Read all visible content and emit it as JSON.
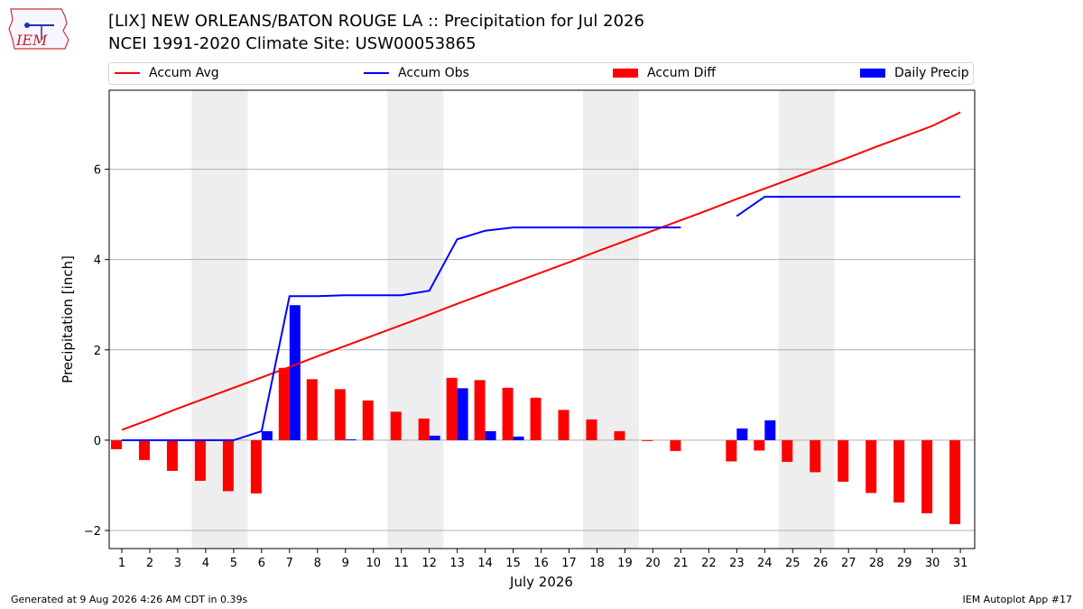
{
  "logo_text": "IEM",
  "title_line1": "[LIX] NEW ORLEANS/BATON ROUGE  LA :: Precipitation for Jul 2026",
  "title_line2": "NCEI 1991-2020 Climate Site: USW00053865",
  "footer_left": "Generated at 9 Aug 2026 4:26 AM CDT in 0.39s",
  "footer_right": "IEM Autoplot App #17",
  "colors": {
    "avg": "#ff0000",
    "obs": "#0000ff",
    "diff": "#ff0000",
    "daily": "#0000ff",
    "weekend": "#eeeeee",
    "grid": "#b0b0b0"
  },
  "chart_data": {
    "type": "bar",
    "xlabel": "July 2026",
    "ylabel": "Precipitation [inch]",
    "ylim": [
      -2.4,
      7.75
    ],
    "yticks": [
      -2,
      0,
      2,
      4,
      6
    ],
    "x": [
      1,
      2,
      3,
      4,
      5,
      6,
      7,
      8,
      9,
      10,
      11,
      12,
      13,
      14,
      15,
      16,
      17,
      18,
      19,
      20,
      21,
      22,
      23,
      24,
      25,
      26,
      27,
      28,
      29,
      30,
      31
    ],
    "shaded_days": [
      4,
      5,
      11,
      12,
      18,
      19,
      25,
      26
    ],
    "grid": true,
    "legend_position": "top",
    "series": [
      {
        "name": "Accum Avg",
        "kind": "line",
        "values": [
          0.23,
          0.46,
          0.7,
          0.93,
          1.16,
          1.39,
          1.62,
          1.86,
          2.09,
          2.32,
          2.55,
          2.78,
          3.02,
          3.25,
          3.48,
          3.71,
          3.94,
          4.18,
          4.41,
          4.64,
          4.87,
          5.1,
          5.34,
          5.57,
          5.8,
          6.03,
          6.26,
          6.5,
          6.73,
          6.96,
          7.26
        ]
      },
      {
        "name": "Accum Obs",
        "kind": "line",
        "values": [
          0,
          0,
          0,
          0,
          0,
          0.2,
          3.19,
          3.19,
          3.21,
          3.21,
          3.21,
          3.31,
          4.45,
          4.64,
          4.71,
          4.71,
          4.71,
          4.71,
          4.71,
          4.71,
          4.71,
          null,
          4.96,
          5.39,
          5.39,
          5.39,
          5.39,
          5.39,
          5.39,
          5.39,
          5.39
        ]
      },
      {
        "name": "Accum Diff",
        "kind": "bar",
        "values": [
          -0.2,
          -0.44,
          -0.68,
          -0.9,
          -1.13,
          -1.18,
          1.6,
          1.35,
          1.13,
          0.88,
          0.63,
          0.48,
          1.38,
          1.33,
          1.16,
          0.94,
          0.67,
          0.46,
          0.2,
          -0.02,
          -0.24,
          null,
          -0.47,
          -0.23,
          -0.48,
          -0.71,
          -0.92,
          -1.17,
          -1.38,
          -1.62,
          -1.86
        ]
      },
      {
        "name": "Daily Precip",
        "kind": "bar",
        "values": [
          0,
          0,
          0,
          0,
          0,
          0.2,
          2.99,
          0,
          0.02,
          0,
          0,
          0.1,
          1.15,
          0.2,
          0.08,
          0,
          0,
          0,
          0,
          0,
          0,
          null,
          0.26,
          0.44,
          0,
          0,
          0,
          0,
          0,
          0,
          0
        ]
      }
    ]
  }
}
